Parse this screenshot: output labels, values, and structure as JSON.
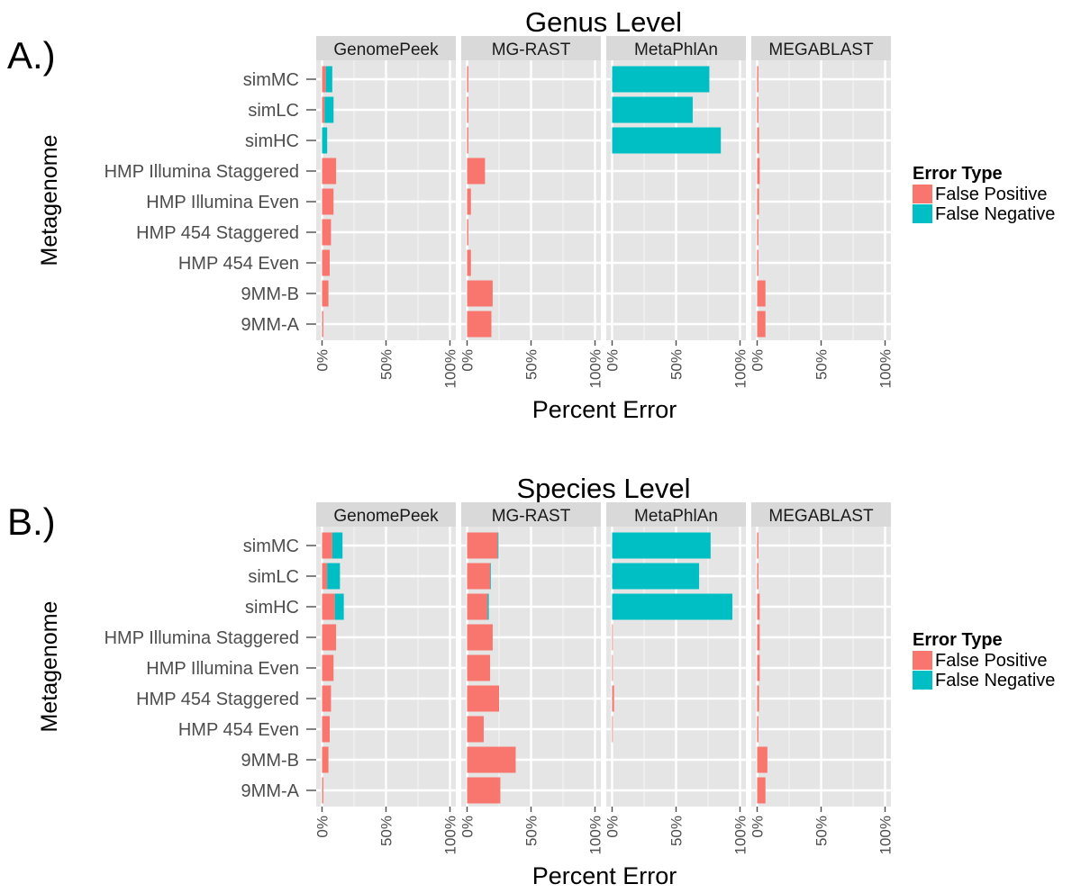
{
  "chart_data": [
    {
      "panel_label": "A.)",
      "type": "bar",
      "orientation": "horizontal",
      "stacked": true,
      "title": "Genus Level",
      "xlabel": "Percent Error",
      "ylabel": "Metagenome",
      "xlim": [
        0,
        100
      ],
      "x_ticks": [
        "0%",
        "50%",
        "100%"
      ],
      "categories": [
        "simMC",
        "simLC",
        "simHC",
        "HMP Illumina Staggered",
        "HMP Illumina Even",
        "HMP 454 Staggered",
        "HMP 454 Even",
        "9MM-B",
        "9MM-A"
      ],
      "legend": {
        "title": "Error Type",
        "position": "right"
      },
      "grid": true,
      "facets": [
        {
          "name": "GenomePeek",
          "series": [
            {
              "name": "False Positive",
              "color": "#F8766D",
              "values": [
                3,
                2,
                0,
                11,
                9,
                7,
                6,
                5,
                1
              ]
            },
            {
              "name": "False Negative",
              "color": "#00BFC4",
              "values": [
                5,
                7,
                4,
                0,
                0,
                0,
                0,
                0,
                0
              ]
            }
          ]
        },
        {
          "name": "MG-RAST",
          "series": [
            {
              "name": "False Positive",
              "color": "#F8766D",
              "values": [
                1,
                1,
                1,
                14,
                3,
                1,
                3,
                20,
                19
              ]
            },
            {
              "name": "False Negative",
              "color": "#00BFC4",
              "values": [
                0,
                0,
                0,
                0,
                0,
                0,
                0,
                0,
                0
              ]
            }
          ]
        },
        {
          "name": "MetaPhlAn",
          "series": [
            {
              "name": "False Positive",
              "color": "#F8766D",
              "values": [
                0,
                0,
                0,
                0,
                0,
                0,
                0,
                0,
                0
              ]
            },
            {
              "name": "False Negative",
              "color": "#00BFC4",
              "values": [
                76,
                63,
                85,
                0,
                0,
                0,
                0,
                0,
                0
              ]
            }
          ]
        },
        {
          "name": "MEGABLAST",
          "series": [
            {
              "name": "False Positive",
              "color": "#F8766D",
              "values": [
                1,
                1,
                1.5,
                2,
                1.5,
                1,
                1,
                6.5,
                6.5
              ]
            },
            {
              "name": "False Negative",
              "color": "#00BFC4",
              "values": [
                0,
                0,
                0,
                0,
                0,
                0,
                0,
                0,
                0
              ]
            }
          ]
        }
      ]
    },
    {
      "panel_label": "B.)",
      "type": "bar",
      "orientation": "horizontal",
      "stacked": true,
      "title": "Species Level",
      "xlabel": "Percent Error",
      "ylabel": "Metagenome",
      "xlim": [
        0,
        100
      ],
      "x_ticks": [
        "0%",
        "50%",
        "100%"
      ],
      "categories": [
        "simMC",
        "simLC",
        "simHC",
        "HMP Illumina Staggered",
        "HMP Illumina Even",
        "HMP 454 Staggered",
        "HMP 454 Even",
        "9MM-B",
        "9MM-A"
      ],
      "legend": {
        "title": "Error Type",
        "position": "right"
      },
      "grid": true,
      "facets": [
        {
          "name": "GenomePeek",
          "series": [
            {
              "name": "False Positive",
              "color": "#F8766D",
              "values": [
                8,
                4,
                10,
                11,
                9,
                7,
                6,
                5,
                1
              ]
            },
            {
              "name": "False Negative",
              "color": "#00BFC4",
              "values": [
                8,
                10,
                7,
                0,
                0,
                0,
                0,
                0,
                0
              ]
            }
          ]
        },
        {
          "name": "MG-RAST",
          "series": [
            {
              "name": "False Positive",
              "color": "#F8766D",
              "values": [
                24,
                18,
                16,
                20,
                18,
                25,
                13,
                38,
                26
              ]
            },
            {
              "name": "False Negative",
              "color": "#00BFC4",
              "values": [
                0.5,
                0.5,
                1,
                0,
                0,
                0,
                0,
                0,
                0
              ]
            }
          ]
        },
        {
          "name": "MetaPhlAn",
          "series": [
            {
              "name": "False Positive",
              "color": "#F8766D",
              "values": [
                0,
                0,
                0,
                0.5,
                0.5,
                1.5,
                0.5,
                0,
                0
              ]
            },
            {
              "name": "False Negative",
              "color": "#00BFC4",
              "values": [
                77,
                68,
                94,
                0,
                0,
                0,
                0,
                0,
                0
              ]
            }
          ]
        },
        {
          "name": "MEGABLAST",
          "series": [
            {
              "name": "False Positive",
              "color": "#F8766D",
              "values": [
                1,
                1,
                2,
                2,
                2,
                1.5,
                1,
                8,
                6.5
              ]
            },
            {
              "name": "False Negative",
              "color": "#00BFC4",
              "values": [
                0,
                0,
                0,
                0,
                0,
                0,
                0,
                0,
                0
              ]
            }
          ]
        }
      ]
    }
  ]
}
